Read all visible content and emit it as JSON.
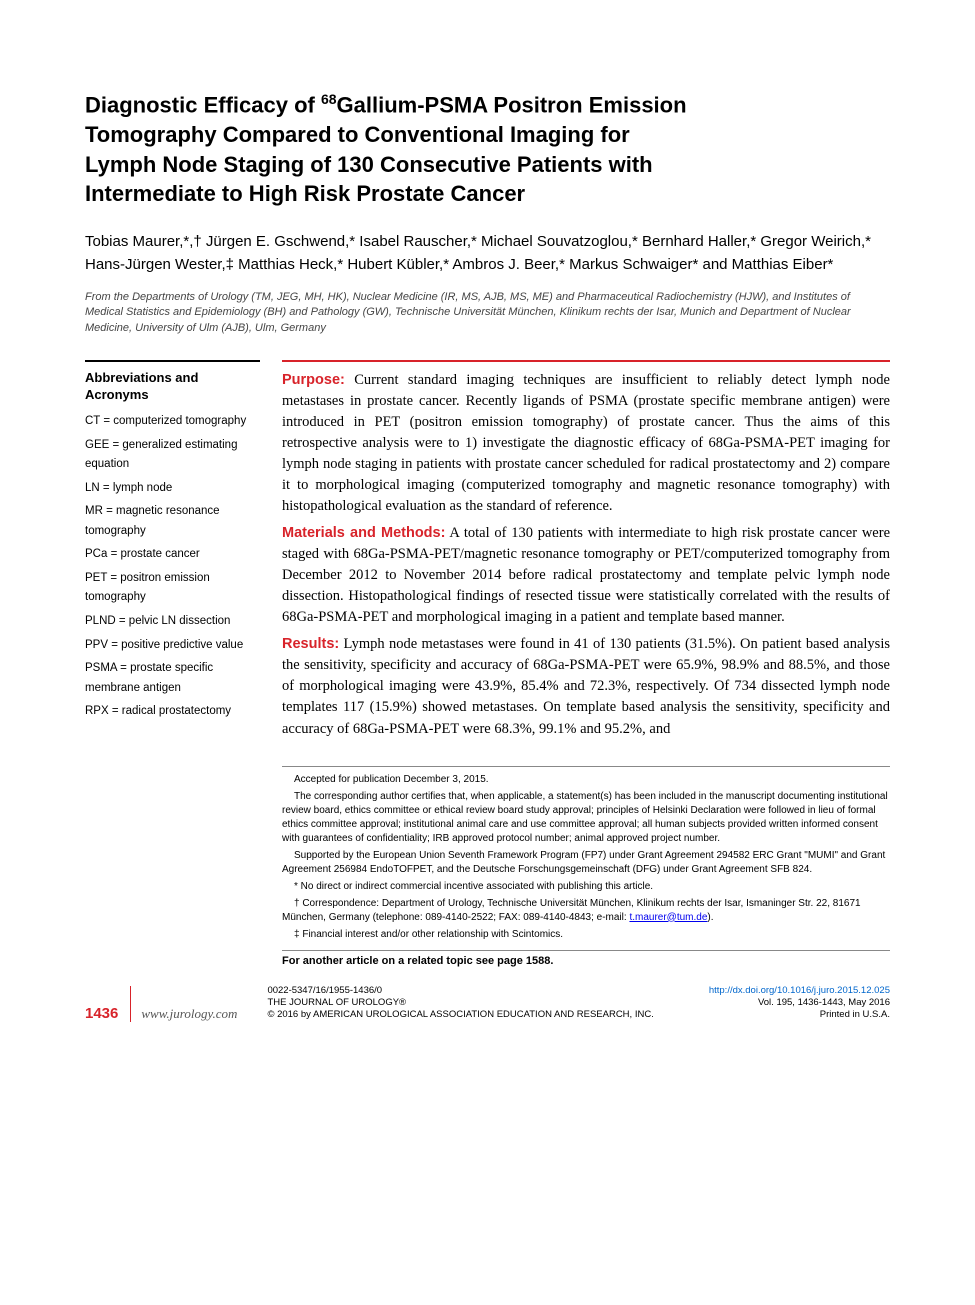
{
  "title": {
    "line1": "Diagnostic Efficacy of ",
    "super1": "68",
    "line1b": "Gallium-PSMA Positron Emission",
    "line2": "Tomography Compared to Conventional Imaging for",
    "line3": "Lymph Node Staging of 130 Consecutive Patients with",
    "line4": "Intermediate to High Risk Prostate Cancer"
  },
  "authors": "Tobias Maurer,*,† Jürgen E. Gschwend,* Isabel Rauscher,* Michael Souvatzoglou,* Bernhard Haller,* Gregor Weirich,* Hans-Jürgen Wester,‡ Matthias Heck,* Hubert Kübler,* Ambros J. Beer,* Markus Schwaiger* and Matthias Eiber*",
  "affiliations": "From the Departments of Urology (TM, JEG, MH, HK), Nuclear Medicine (IR, MS, AJB, MS, ME) and Pharmaceutical Radiochemistry (HJW), and Institutes of Medical Statistics and Epidemiology (BH) and Pathology (GW), Technische Universität München, Klinikum rechts der Isar, Munich and Department of Nuclear Medicine, University of Ulm (AJB), Ulm, Germany",
  "sidebar": {
    "title": "Abbreviations and Acronyms",
    "items": [
      {
        "abbr": "CT",
        "def": "computerized tomography"
      },
      {
        "abbr": "GEE",
        "def": "generalized estimating equation"
      },
      {
        "abbr": "LN",
        "def": "lymph node"
      },
      {
        "abbr": "MR",
        "def": "magnetic resonance tomography"
      },
      {
        "abbr": "PCa",
        "def": "prostate cancer"
      },
      {
        "abbr": "PET",
        "def": "positron emission tomography"
      },
      {
        "abbr": "PLND",
        "def": "pelvic LN dissection"
      },
      {
        "abbr": "PPV",
        "def": "positive predictive value"
      },
      {
        "abbr": "PSMA",
        "def": "prostate specific membrane antigen"
      },
      {
        "abbr": "RPX",
        "def": "radical prostatectomy"
      }
    ]
  },
  "abstract": {
    "purpose_label": "Purpose:",
    "purpose": " Current standard imaging techniques are insufficient to reliably detect lymph node metastases in prostate cancer. Recently ligands of PSMA (prostate specific membrane antigen) were introduced in PET (positron emission tomography) of prostate cancer. Thus the aims of this retrospective analysis were to 1) investigate the diagnostic efficacy of 68Ga-PSMA-PET imaging for lymph node staging in patients with prostate cancer scheduled for radical prostatectomy and 2) compare it to morphological imaging (computerized tomography and magnetic resonance tomography) with histopathological evaluation as the standard of reference.",
    "methods_label": "Materials and Methods:",
    "methods": " A total of 130 patients with intermediate to high risk prostate cancer were staged with 68Ga-PSMA-PET/magnetic resonance tomography or PET/computerized tomography from December 2012 to November 2014 before radical prostatectomy and template pelvic lymph node dissection. Histopathological findings of resected tissue were statistically correlated with the results of 68Ga-PSMA-PET and morphological imaging in a patient and template based manner.",
    "results_label": "Results:",
    "results": " Lymph node metastases were found in 41 of 130 patients (31.5%). On patient based analysis the sensitivity, specificity and accuracy of 68Ga-PSMA-PET were 65.9%, 98.9% and 88.5%, and those of morphological imaging were 43.9%, 85.4% and 72.3%, respectively. Of 734 dissected lymph node templates 117 (15.9%) showed metastases. On template based analysis the sensitivity, specificity and accuracy of 68Ga-PSMA-PET were 68.3%, 99.1% and 95.2%, and"
  },
  "footnotes": {
    "accepted": "Accepted for publication December 3, 2015.",
    "certifies": "The corresponding author certifies that, when applicable, a statement(s) has been included in the manuscript documenting institutional review board, ethics committee or ethical review board study approval; principles of Helsinki Declaration were followed in lieu of formal ethics committee approval; institutional animal care and use committee approval; all human subjects provided written informed consent with guarantees of confidentiality; IRB approved protocol number; animal approved project number.",
    "supported": "Supported by the European Union Seventh Framework Program (FP7) under Grant Agreement 294582 ERC Grant \"MUMI\" and Grant Agreement 256984 EndoTOFPET, and the Deutsche Forschungsgemeinschaft (DFG) under Grant Agreement SFB 824.",
    "star": "* No direct or indirect commercial incentive associated with publishing this article.",
    "dagger": "† Correspondence: Department of Urology, Technische Universität München, Klinikum rechts der Isar, Ismaninger Str. 22, 81671 München, Germany (telephone: 089-4140-2522; FAX: 089-4140-4843; e-mail: ",
    "email": "t.maurer@tum.de",
    "dagger_end": ").",
    "ddagger": "‡ Financial interest and/or other relationship with Scintomics."
  },
  "related": "For another article on a related topic see page 1588.",
  "footer": {
    "page": "1436",
    "website": "www.jurology.com",
    "issn": "0022-5347/16/1955-1436/0",
    "journal": "THE JOURNAL OF UROLOGY®",
    "copyright": "© 2016 by AMERICAN UROLOGICAL ASSOCIATION EDUCATION AND RESEARCH, INC.",
    "doi": "http://dx.doi.org/10.1016/j.juro.2015.12.025",
    "vol": "Vol. 195, 1436-1443, May 2016",
    "printed": "Printed in U.S.A."
  },
  "colors": {
    "accent": "#d8232a",
    "text": "#000000",
    "link": "#0066cc"
  }
}
